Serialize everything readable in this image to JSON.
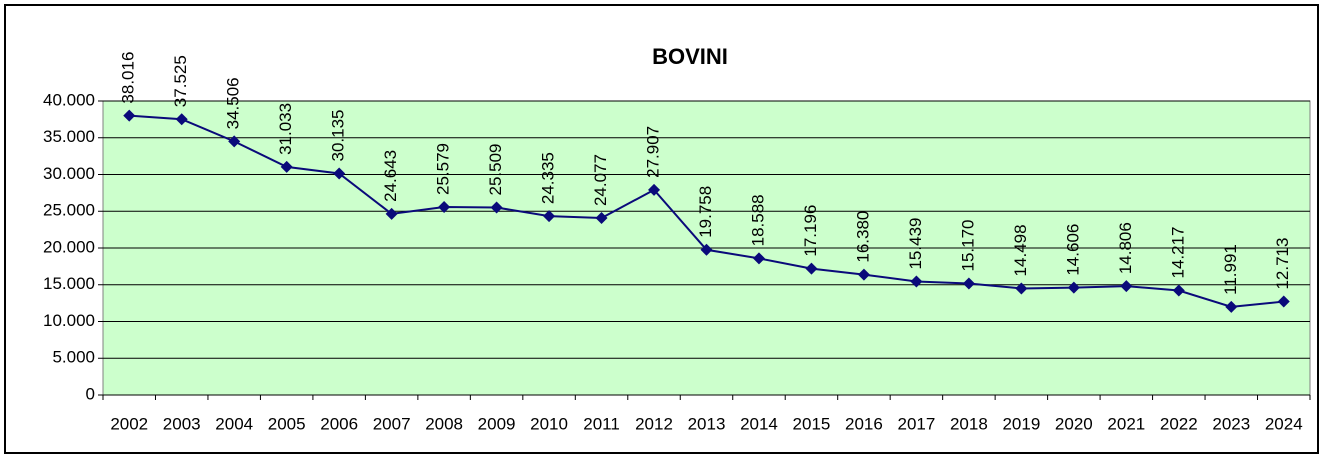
{
  "chart_data": {
    "type": "line",
    "title": "BOVINI",
    "categories": [
      "2002",
      "2003",
      "2004",
      "2005",
      "2006",
      "2007",
      "2008",
      "2009",
      "2010",
      "2011",
      "2012",
      "2013",
      "2014",
      "2015",
      "2016",
      "2017",
      "2018",
      "2019",
      "2020",
      "2021",
      "2022",
      "2023",
      "2024"
    ],
    "series": [
      {
        "name": "BOVINI",
        "color": "#0a0a7a",
        "values": [
          38016,
          37525,
          34506,
          31033,
          30135,
          24643,
          25579,
          25509,
          24335,
          24077,
          27907,
          19758,
          18588,
          17196,
          16380,
          15439,
          15170,
          14498,
          14606,
          14806,
          14217,
          11991,
          12713
        ],
        "value_labels": [
          "38.016",
          "37.525",
          "34.506",
          "31.033",
          "30.135",
          "24.643",
          "25.579",
          "25.509",
          "24.335",
          "24.077",
          "27.907",
          "19.758",
          "18.588",
          "17.196",
          "16.380",
          "15.439",
          "15.170",
          "14.498",
          "14.606",
          "14.806",
          "14.217",
          "11.991",
          "12.713"
        ]
      }
    ],
    "ylim": [
      0,
      40000
    ],
    "yticks": [
      0,
      {
        "value": 5000,
        "label": "5.000"
      },
      {
        "value": 10000,
        "label": "10.000"
      },
      {
        "value": 15000,
        "label": "15.000"
      },
      {
        "value": 20000,
        "label": "20.000"
      },
      {
        "value": 25000,
        "label": "25.000"
      },
      {
        "value": 30000,
        "label": "30.000"
      },
      {
        "value": 35000,
        "label": "35.000"
      },
      {
        "value": 40000,
        "label": "40.000"
      }
    ],
    "grid": true,
    "plot_background": "#ccffcc"
  }
}
